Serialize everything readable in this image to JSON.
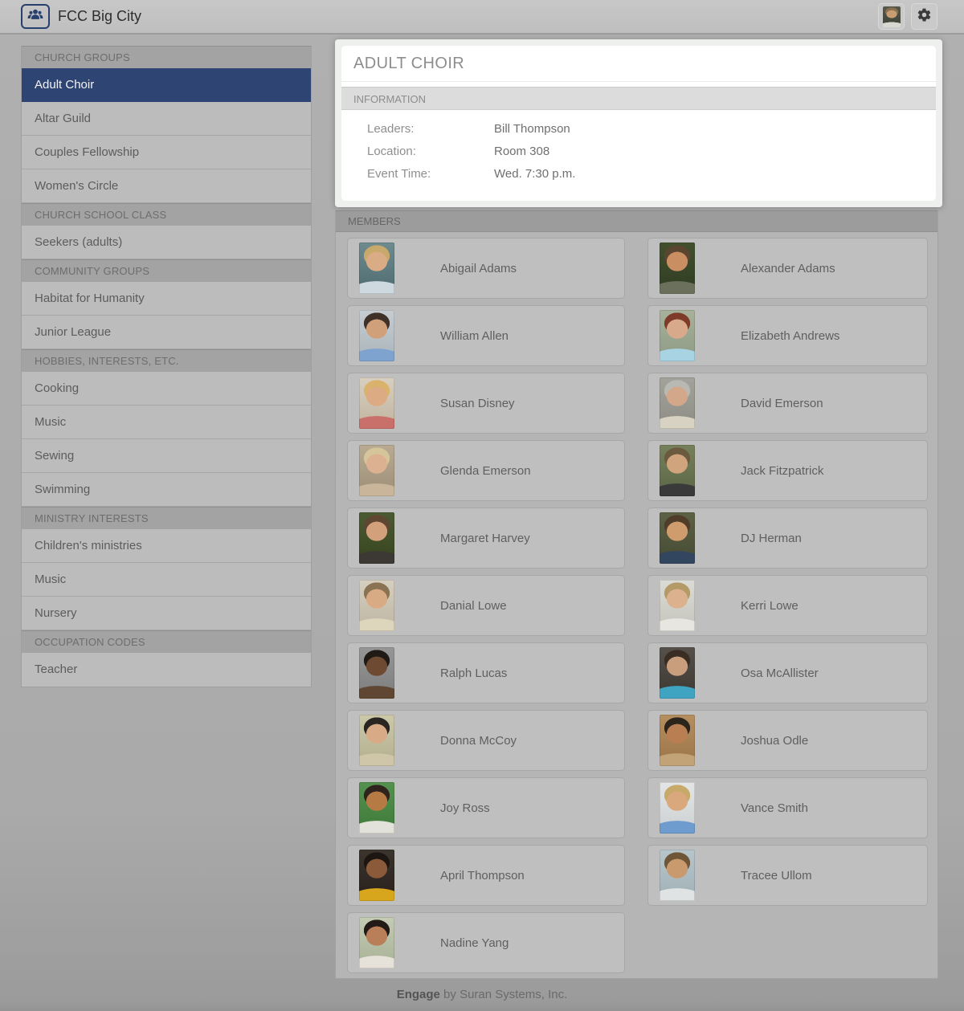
{
  "header": {
    "title": "FCC Big City"
  },
  "avatar_photo": {
    "bg1": "#55584a",
    "bg2": "#3e4136",
    "hair": "#8a6f4f",
    "skin": "#c99c74",
    "shirt": "#d8d8d0"
  },
  "sidebar": {
    "sections": [
      {
        "label": "CHURCH GROUPS",
        "items": [
          {
            "label": "Adult Choir",
            "selected": true
          },
          {
            "label": "Altar Guild"
          },
          {
            "label": "Couples Fellowship"
          },
          {
            "label": "Women's Circle"
          }
        ]
      },
      {
        "label": "CHURCH SCHOOL CLASS",
        "items": [
          {
            "label": "Seekers (adults)"
          }
        ]
      },
      {
        "label": "COMMUNITY GROUPS",
        "items": [
          {
            "label": "Habitat for Humanity"
          },
          {
            "label": "Junior League"
          }
        ]
      },
      {
        "label": "HOBBIES, INTERESTS, ETC.",
        "items": [
          {
            "label": "Cooking"
          },
          {
            "label": "Music"
          },
          {
            "label": "Sewing"
          },
          {
            "label": "Swimming"
          }
        ]
      },
      {
        "label": "MINISTRY INTERESTS",
        "items": [
          {
            "label": "Children's ministries"
          },
          {
            "label": "Music"
          },
          {
            "label": "Nursery"
          }
        ]
      },
      {
        "label": "OCCUPATION CODES",
        "items": [
          {
            "label": "Teacher"
          }
        ]
      }
    ]
  },
  "main": {
    "title": "ADULT CHOIR",
    "information": {
      "label": "INFORMATION",
      "fields": [
        {
          "label": "Leaders:",
          "value": "Bill Thompson"
        },
        {
          "label": "Location:",
          "value": "Room 308"
        },
        {
          "label": "Event Time:",
          "value": "Wed. 7:30 p.m."
        }
      ]
    },
    "members": {
      "label": "MEMBERS",
      "list": [
        {
          "name": "Abigail Adams",
          "photo": {
            "bg1": "#6f8b8f",
            "bg2": "#4e6b70",
            "hair": "#c8a96b",
            "skin": "#d9ac85",
            "shirt": "#cdd9df"
          }
        },
        {
          "name": "Alexander Adams",
          "photo": {
            "bg1": "#42502f",
            "bg2": "#2f3c22",
            "hair": "#5a4630",
            "skin": "#c98f62",
            "shirt": "#6b705c"
          }
        },
        {
          "name": "William Allen",
          "photo": {
            "bg1": "#c6cdd2",
            "bg2": "#aab4ba",
            "hair": "#3f3128",
            "skin": "#cfa07a",
            "shirt": "#7fa3cf"
          }
        },
        {
          "name": "Elizabeth Andrews",
          "photo": {
            "bg1": "#a8b29b",
            "bg2": "#8d9a84",
            "hair": "#7e3b2a",
            "skin": "#d8a98a",
            "shirt": "#a7d3e3"
          }
        },
        {
          "name": "Susan Disney",
          "photo": {
            "bg1": "#d8cfc0",
            "bg2": "#c0b49f",
            "hair": "#d9b36b",
            "skin": "#dcab83",
            "shirt": "#c9706a"
          }
        },
        {
          "name": "David Emerson",
          "photo": {
            "bg1": "#a3a39b",
            "bg2": "#8d8d85",
            "hair": "#b9b9b3",
            "skin": "#d3a88a",
            "shirt": "#d8d2c2"
          }
        },
        {
          "name": "Glenda Emerson",
          "photo": {
            "bg1": "#b9ab92",
            "bg2": "#9d8f77",
            "hair": "#d6c49a",
            "skin": "#dcb191",
            "shirt": "#c9b69a"
          }
        },
        {
          "name": "Jack Fitzpatrick",
          "photo": {
            "bg1": "#76815a",
            "bg2": "#5b6647",
            "hair": "#6b5a3f",
            "skin": "#d0a47c",
            "shirt": "#3a3a3a"
          }
        },
        {
          "name": "Margaret Harvey",
          "photo": {
            "bg1": "#4c5a33",
            "bg2": "#37451f",
            "hair": "#5f4632",
            "skin": "#d2a07a",
            "shirt": "#3c3833"
          }
        },
        {
          "name": "DJ Herman",
          "photo": {
            "bg1": "#5d6246",
            "bg2": "#454a33",
            "hair": "#4f3d2a",
            "skin": "#cf9c6e",
            "shirt": "#33465f"
          }
        },
        {
          "name": "Danial Lowe",
          "photo": {
            "bg1": "#d6cfc0",
            "bg2": "#beb5a2",
            "hair": "#8a7352",
            "skin": "#d8ab85",
            "shirt": "#ded5bd"
          }
        },
        {
          "name": "Kerri Lowe",
          "photo": {
            "bg1": "#dcdcd6",
            "bg2": "#c4c4bc",
            "hair": "#b39a66",
            "skin": "#dcb28e",
            "shirt": "#e8e6e0"
          }
        },
        {
          "name": "Ralph Lucas",
          "photo": {
            "bg1": "#969696",
            "bg2": "#7d7d7d",
            "hair": "#1f1a16",
            "skin": "#6e4a33",
            "shirt": "#5f4733"
          }
        },
        {
          "name": "Osa McAllister",
          "photo": {
            "bg1": "#55504a",
            "bg2": "#3d3832",
            "hair": "#3a2e24",
            "skin": "#c99e7c",
            "shirt": "#3fa3c2"
          }
        },
        {
          "name": "Donna McCoy",
          "photo": {
            "bg1": "#ccc9ab",
            "bg2": "#b2ae8e",
            "hair": "#2b2522",
            "skin": "#d8aa86",
            "shirt": "#cfc5a8"
          }
        },
        {
          "name": "Joshua Odle",
          "photo": {
            "bg1": "#b68f60",
            "bg2": "#9a7348",
            "hair": "#2d241c",
            "skin": "#b97f52",
            "shirt": "#c2a277"
          }
        },
        {
          "name": "Joy Ross",
          "photo": {
            "bg1": "#55914f",
            "bg2": "#3f7a3a",
            "hair": "#2f241d",
            "skin": "#b67a45",
            "shirt": "#e2e2da"
          }
        },
        {
          "name": "Vance Smith",
          "photo": {
            "bg1": "#e4e6e6",
            "bg2": "#ccd0d2",
            "hair": "#c7a96a",
            "skin": "#d9a87c",
            "shirt": "#6f9ccf"
          }
        },
        {
          "name": "April Thompson",
          "photo": {
            "bg1": "#3c352e",
            "bg2": "#281f1a",
            "hair": "#1c1512",
            "skin": "#8a5a3a",
            "shirt": "#d8a61c"
          }
        },
        {
          "name": "Tracee Ullom",
          "photo": {
            "bg1": "#b8c6cb",
            "bg2": "#9fb0b6",
            "hair": "#6f5638",
            "skin": "#c89a6e",
            "shirt": "#dfe3e3"
          }
        },
        {
          "name": "Nadine Yang",
          "photo": {
            "bg1": "#c3cbb4",
            "bg2": "#a8b295",
            "hair": "#221a16",
            "skin": "#b97f58",
            "shirt": "#e6e2da"
          }
        }
      ]
    }
  },
  "footer": {
    "brand": "Engage",
    "text": " by Suran Systems, Inc."
  },
  "colors": {
    "accent": "#2e4573",
    "logo_navy": "#27406e",
    "highlight_panel": "#ffffff"
  }
}
